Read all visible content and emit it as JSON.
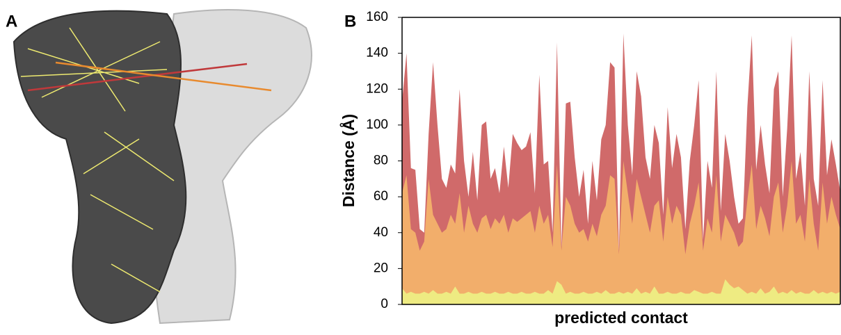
{
  "panel_a": {
    "label": "A"
  },
  "chart_data": {
    "type": "area",
    "panel_label": "B",
    "ylabel": "Distance (Å)",
    "xlabel": "predicted contact",
    "ylim": [
      0,
      160
    ],
    "yticks": [
      0,
      20,
      40,
      60,
      80,
      100,
      120,
      140,
      160
    ],
    "series": [
      {
        "color": "#d06a6a",
        "values": [
          113,
          140,
          76,
          75,
          42,
          40,
          95,
          135,
          100,
          70,
          65,
          78,
          73,
          120,
          80,
          60,
          85,
          58,
          100,
          102,
          70,
          76,
          62,
          88,
          65,
          95,
          90,
          86,
          88,
          96,
          62,
          128,
          78,
          80,
          40,
          146,
          32,
          112,
          113,
          82,
          60,
          75,
          45,
          80,
          58,
          92,
          100,
          135,
          132,
          30,
          151,
          100,
          72,
          130,
          116,
          82,
          70,
          100,
          90,
          50,
          110,
          76,
          95,
          82,
          42,
          80,
          100,
          125,
          36,
          80,
          65,
          130,
          52,
          95,
          80,
          60,
          45,
          48,
          110,
          150,
          75,
          100,
          78,
          62,
          120,
          130,
          60,
          98,
          150,
          70,
          85,
          55,
          130,
          70,
          55,
          125,
          72,
          92,
          78,
          63
        ]
      },
      {
        "color": "#f2ae6b",
        "values": [
          62,
          72,
          42,
          40,
          30,
          35,
          70,
          50,
          45,
          40,
          42,
          50,
          45,
          62,
          40,
          55,
          45,
          40,
          48,
          50,
          42,
          48,
          45,
          50,
          40,
          48,
          46,
          48,
          50,
          52,
          40,
          55,
          45,
          50,
          32,
          78,
          30,
          60,
          55,
          45,
          40,
          42,
          35,
          45,
          38,
          50,
          55,
          72,
          70,
          28,
          80,
          62,
          45,
          70,
          60,
          50,
          40,
          55,
          58,
          35,
          60,
          45,
          55,
          50,
          28,
          45,
          55,
          68,
          30,
          48,
          40,
          72,
          35,
          50,
          45,
          40,
          32,
          35,
          58,
          78,
          42,
          55,
          48,
          38,
          60,
          68,
          40,
          55,
          80,
          45,
          50,
          35,
          70,
          45,
          30,
          68,
          45,
          60,
          50,
          42
        ]
      },
      {
        "color": "#eeeb82",
        "values": [
          9,
          6,
          7,
          6,
          6,
          7,
          6,
          8,
          6,
          6,
          7,
          6,
          10,
          6,
          6,
          7,
          6,
          6,
          7,
          6,
          6,
          7,
          6,
          6,
          7,
          6,
          6,
          7,
          6,
          6,
          7,
          6,
          6,
          8,
          6,
          13,
          11,
          6,
          7,
          6,
          6,
          7,
          6,
          6,
          7,
          6,
          8,
          6,
          6,
          7,
          6,
          7,
          6,
          9,
          6,
          7,
          6,
          10,
          6,
          6,
          7,
          6,
          6,
          7,
          6,
          6,
          8,
          7,
          6,
          6,
          7,
          6,
          6,
          14,
          11,
          9,
          10,
          8,
          6,
          7,
          6,
          9,
          6,
          7,
          10,
          6,
          7,
          6,
          8,
          6,
          7,
          6,
          6,
          8,
          6,
          7,
          6,
          7,
          6,
          7
        ]
      }
    ]
  }
}
